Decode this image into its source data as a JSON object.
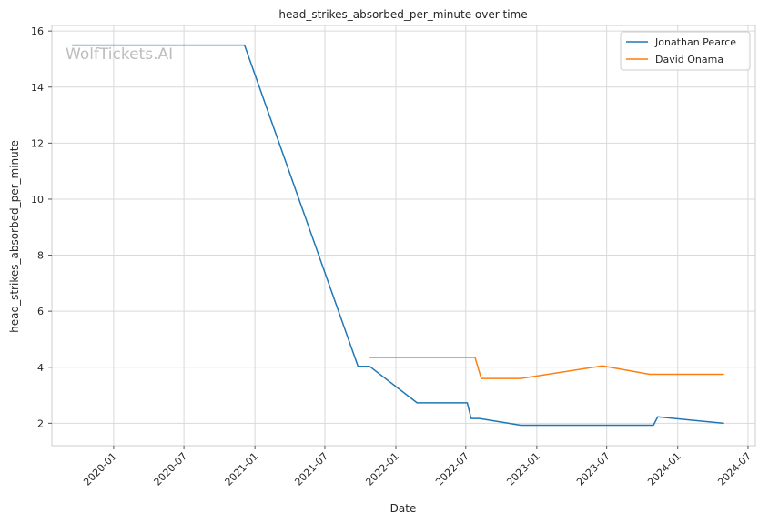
{
  "chart_data": {
    "type": "line",
    "title": "head_strikes_absorbed_per_minute over time",
    "xlabel": "Date",
    "ylabel": "head_strikes_absorbed_per_minute",
    "watermark": "WolfTickets.AI",
    "grid": true,
    "legend_position": "top-right",
    "xlim": [
      "2019-07-25",
      "2024-07-20"
    ],
    "ylim": [
      1.2,
      16.2
    ],
    "x_ticks": [
      "2020-01",
      "2020-07",
      "2021-01",
      "2021-07",
      "2022-01",
      "2022-07",
      "2023-01",
      "2023-07",
      "2024-01",
      "2024-07"
    ],
    "y_ticks": [
      2,
      4,
      6,
      8,
      10,
      12,
      14,
      16
    ],
    "series": [
      {
        "name": "Jonathan Pearce",
        "color": "#1f77b4",
        "x": [
          "2019-09-15",
          "2020-12-05",
          "2021-09-25",
          "2021-10-25",
          "2022-02-25",
          "2022-07-05",
          "2022-07-15",
          "2022-08-05",
          "2022-11-20",
          "2023-10-30",
          "2023-11-10",
          "2024-04-30"
        ],
        "y": [
          15.5,
          15.5,
          4.03,
          4.03,
          2.73,
          2.73,
          2.17,
          2.17,
          1.93,
          1.93,
          2.23,
          2.0
        ]
      },
      {
        "name": "David Onama",
        "color": "#ff7f0e",
        "x": [
          "2021-10-25",
          "2022-07-25",
          "2022-08-10",
          "2022-11-20",
          "2023-06-20",
          "2023-10-20",
          "2024-04-30"
        ],
        "y": [
          4.35,
          4.35,
          3.6,
          3.6,
          4.05,
          3.75,
          3.75
        ]
      }
    ]
  }
}
